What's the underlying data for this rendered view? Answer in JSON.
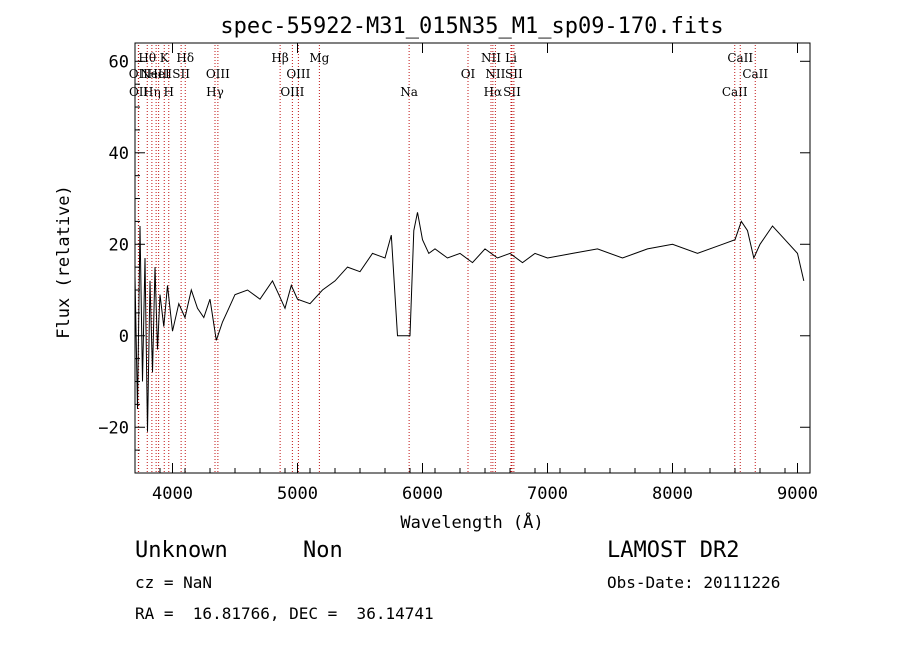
{
  "chart_data": {
    "type": "line",
    "title": "spec-55922-M31_015N35_M1_sp09-170.fits",
    "xlabel": "Wavelength (Å)",
    "ylabel": "Flux (relative)",
    "xlim": [
      3700,
      9100
    ],
    "ylim": [
      -30,
      64
    ],
    "grid": false,
    "x_ticks": [
      4000,
      5000,
      6000,
      7000,
      8000,
      9000
    ],
    "x_tick_labels": [
      "4000",
      "5000",
      "6000",
      "7000",
      "8000",
      "9000"
    ],
    "y_ticks": [
      -20,
      0,
      20,
      40,
      60
    ],
    "y_tick_labels": [
      "−20",
      "0",
      "20",
      "40",
      "60"
    ],
    "series": [
      {
        "color": "#000000",
        "x": [
          3700,
          3720,
          3740,
          3760,
          3780,
          3800,
          3820,
          3840,
          3860,
          3880,
          3900,
          3930,
          3960,
          4000,
          4050,
          4100,
          4150,
          4200,
          4250,
          4300,
          4350,
          4400,
          4450,
          4500,
          4600,
          4700,
          4800,
          4850,
          4900,
          4950,
          5000,
          5100,
          5200,
          5300,
          5400,
          5500,
          5600,
          5700,
          5750,
          5800,
          5850,
          5870,
          5900,
          5930,
          5960,
          6000,
          6050,
          6100,
          6200,
          6300,
          6400,
          6500,
          6600,
          6700,
          6800,
          6900,
          7000,
          7200,
          7400,
          7600,
          7800,
          8000,
          8200,
          8400,
          8500,
          8550,
          8600,
          8650,
          8700,
          8800,
          8900,
          9000,
          9050
        ],
        "y": [
          13,
          -16,
          24,
          -10,
          17,
          -21,
          12,
          -8,
          15,
          -3,
          9,
          2,
          11,
          1,
          7,
          4,
          10,
          6,
          4,
          8,
          -1,
          3,
          6,
          9,
          10,
          8,
          12,
          9,
          6,
          11,
          8,
          7,
          10,
          12,
          15,
          14,
          18,
          17,
          22,
          0,
          0,
          0,
          0,
          23,
          27,
          21,
          18,
          19,
          17,
          18,
          16,
          19,
          17,
          18,
          16,
          18,
          17,
          18,
          19,
          17,
          19,
          20,
          18,
          20,
          21,
          25,
          23,
          17,
          20,
          24,
          21,
          18,
          12
        ]
      }
    ],
    "line_markers": [
      {
        "x": 3727,
        "label": "OII",
        "row": 2
      },
      {
        "x": 3729,
        "label": "OII",
        "row": 3
      },
      {
        "x": 3798,
        "label": "Hθ",
        "row": 1
      },
      {
        "x": 3835,
        "label": "Hη",
        "row": 3
      },
      {
        "x": 3869,
        "label": "NeIII",
        "row": 2
      },
      {
        "x": 3889,
        "label": "HeI",
        "row": 2
      },
      {
        "x": 3934,
        "label": "K",
        "row": 1
      },
      {
        "x": 3970,
        "label": "H",
        "row": 3
      },
      {
        "x": 4069,
        "label": "SII",
        "row": 2
      },
      {
        "x": 4102,
        "label": "Hδ",
        "row": 1
      },
      {
        "x": 4340,
        "label": "Hγ",
        "row": 3
      },
      {
        "x": 4363,
        "label": "OIII",
        "row": 2
      },
      {
        "x": 4861,
        "label": "Hβ",
        "row": 1
      },
      {
        "x": 4959,
        "label": "OIII",
        "row": 3
      },
      {
        "x": 5007,
        "label": "OIII",
        "row": 2
      },
      {
        "x": 5175,
        "label": "Mg",
        "row": 1
      },
      {
        "x": 5893,
        "label": "Na",
        "row": 3
      },
      {
        "x": 6364,
        "label": "OI",
        "row": 2
      },
      {
        "x": 6548,
        "label": "NII",
        "row": 1
      },
      {
        "x": 6563,
        "label": "Hα",
        "row": 3
      },
      {
        "x": 6583,
        "label": "NII",
        "row": 2
      },
      {
        "x": 6708,
        "label": "Li",
        "row": 1
      },
      {
        "x": 6716,
        "label": "SII",
        "row": 3
      },
      {
        "x": 6731,
        "label": "SII",
        "row": 2
      },
      {
        "x": 8498,
        "label": "CaII",
        "row": 3
      },
      {
        "x": 8542,
        "label": "CaII",
        "row": 1
      },
      {
        "x": 8662,
        "label": "CaII",
        "row": 2
      }
    ]
  },
  "footer": {
    "object_class": "Unknown",
    "object_subclass": "Non",
    "source": "LAMOST DR2",
    "redshift": "cz = NaN",
    "obs_date": "Obs-Date: 20111226",
    "coords": "RA =  16.81766, DEC =  36.14741"
  }
}
